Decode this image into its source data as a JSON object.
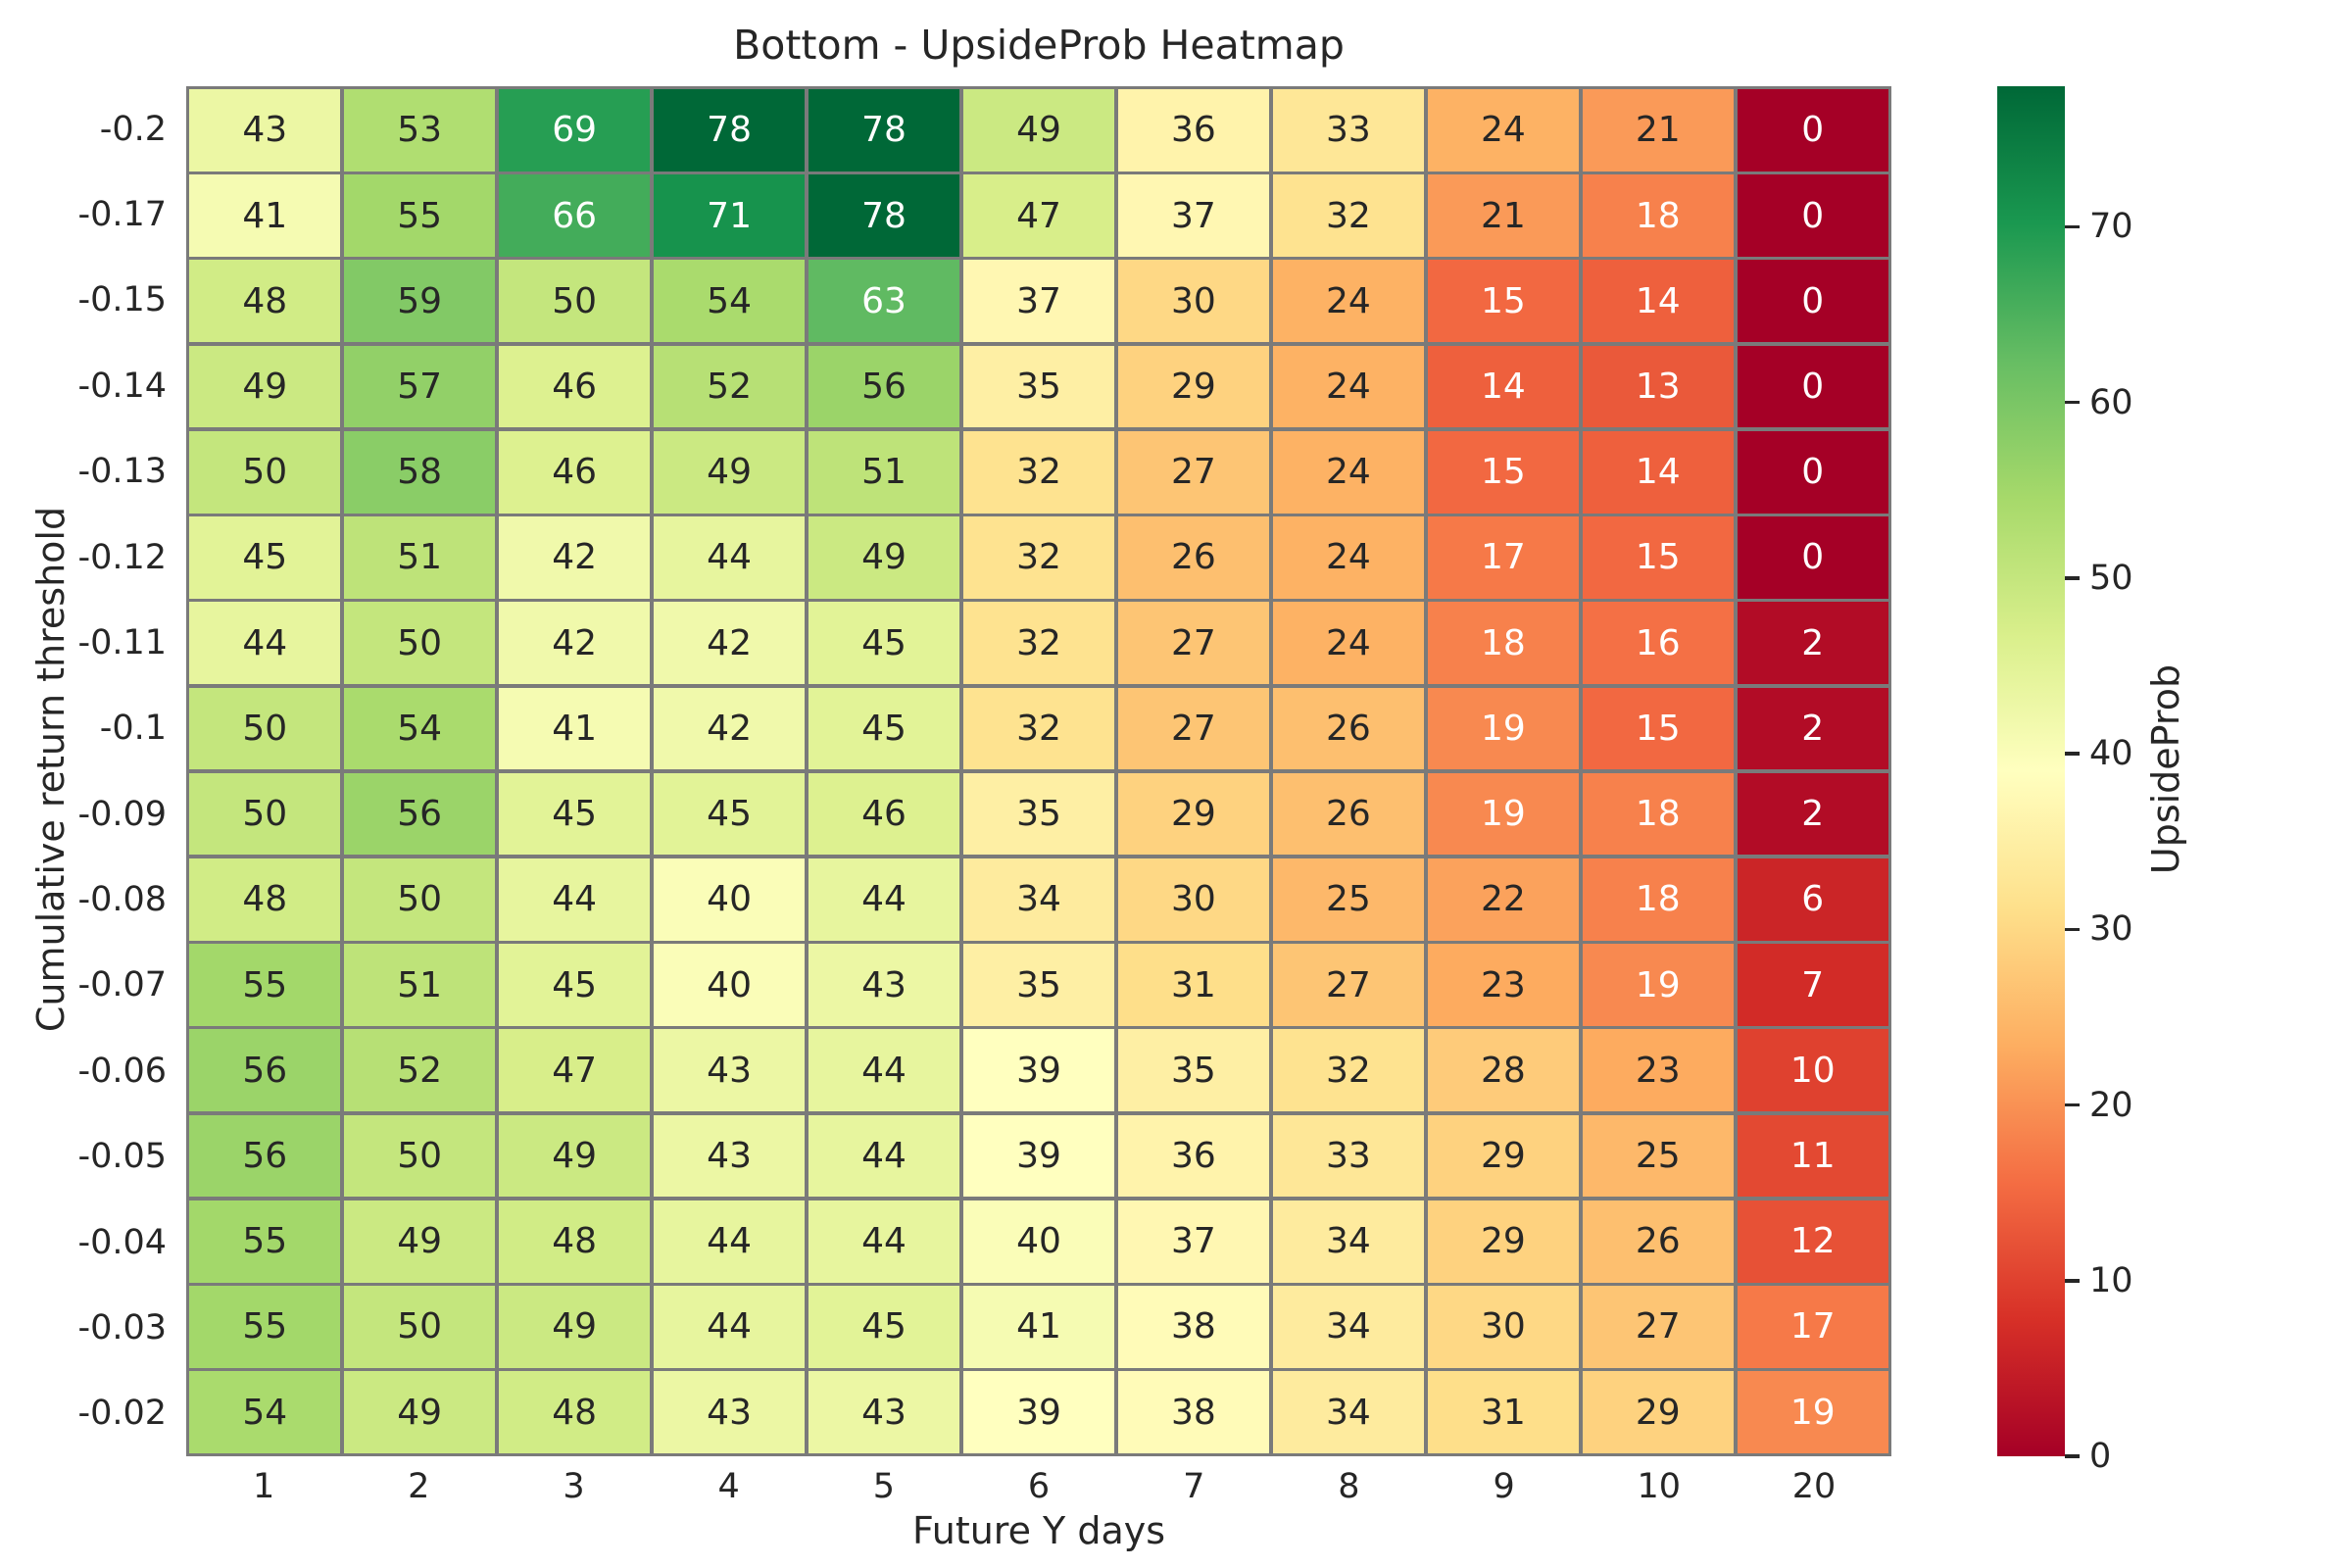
{
  "title": "Bottom - UpsideProb Heatmap",
  "xlabel": "Future Y days",
  "ylabel": "Cumulative return threshold",
  "colorbar": {
    "label": "UpsideProb",
    "ticks": [
      70,
      60,
      50,
      40,
      30,
      20,
      10,
      0
    ],
    "vmin": 0,
    "vmax": 78
  },
  "colors": {
    "grid_line": "#7a7a7a",
    "dark_text": "#262626",
    "light_text": "#ffffff",
    "background": "#ffffff",
    "rdylgn_anchors": [
      "#a50026",
      "#d73027",
      "#f46d43",
      "#fdae61",
      "#fee08b",
      "#ffffbf",
      "#d9ef8b",
      "#a6d96a",
      "#66bd63",
      "#1a9850",
      "#006837"
    ]
  },
  "chart_data": {
    "type": "heatmap",
    "title": "Bottom - UpsideProb Heatmap",
    "xlabel": "Future Y days",
    "ylabel": "Cumulative return threshold",
    "colormap": "RdYlGn",
    "vmin": 0,
    "vmax": 78,
    "legend_position": "right-colorbar",
    "grid": "gray cell borders",
    "x_categories": [
      "1",
      "2",
      "3",
      "4",
      "5",
      "6",
      "7",
      "8",
      "9",
      "10",
      "20"
    ],
    "y_categories": [
      "-0.2",
      "-0.17",
      "-0.15",
      "-0.14",
      "-0.13",
      "-0.12",
      "-0.11",
      "-0.1",
      "-0.09",
      "-0.08",
      "-0.07",
      "-0.06",
      "-0.05",
      "-0.04",
      "-0.03",
      "-0.02"
    ],
    "values": [
      [
        43,
        53,
        69,
        78,
        78,
        49,
        36,
        33,
        24,
        21,
        0
      ],
      [
        41,
        55,
        66,
        71,
        78,
        47,
        37,
        32,
        21,
        18,
        0
      ],
      [
        48,
        59,
        50,
        54,
        63,
        37,
        30,
        24,
        15,
        14,
        0
      ],
      [
        49,
        57,
        46,
        52,
        56,
        35,
        29,
        24,
        14,
        13,
        0
      ],
      [
        50,
        58,
        46,
        49,
        51,
        32,
        27,
        24,
        15,
        14,
        0
      ],
      [
        45,
        51,
        42,
        44,
        49,
        32,
        26,
        24,
        17,
        15,
        0
      ],
      [
        44,
        50,
        42,
        42,
        45,
        32,
        27,
        24,
        18,
        16,
        2
      ],
      [
        50,
        54,
        41,
        42,
        45,
        32,
        27,
        26,
        19,
        15,
        2
      ],
      [
        50,
        56,
        45,
        45,
        46,
        35,
        29,
        26,
        19,
        18,
        2
      ],
      [
        48,
        50,
        44,
        40,
        44,
        34,
        30,
        25,
        22,
        18,
        6
      ],
      [
        55,
        51,
        45,
        40,
        43,
        35,
        31,
        27,
        23,
        19,
        7
      ],
      [
        56,
        52,
        47,
        43,
        44,
        39,
        35,
        32,
        28,
        23,
        10
      ],
      [
        56,
        50,
        49,
        43,
        44,
        39,
        36,
        33,
        29,
        25,
        11
      ],
      [
        55,
        49,
        48,
        44,
        44,
        40,
        37,
        34,
        29,
        26,
        12
      ],
      [
        55,
        50,
        49,
        44,
        45,
        41,
        38,
        34,
        30,
        27,
        17
      ],
      [
        54,
        49,
        48,
        43,
        43,
        39,
        38,
        34,
        31,
        29,
        19
      ]
    ]
  }
}
